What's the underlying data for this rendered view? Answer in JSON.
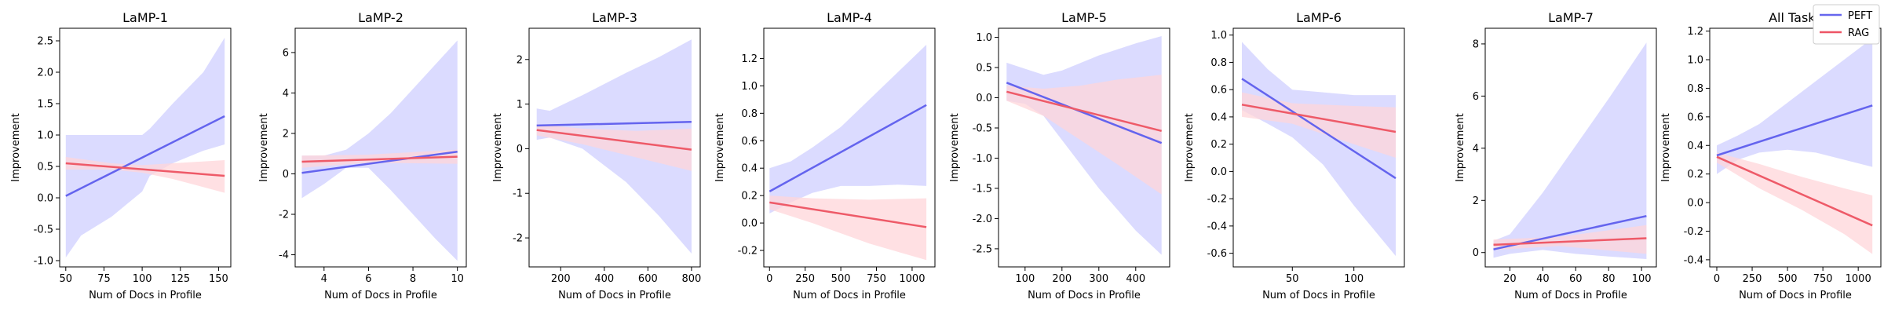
{
  "figure": {
    "legend": {
      "placement": "top-right",
      "entries": [
        {
          "label": "PEFT",
          "color": "#6666ee"
        },
        {
          "label": "RAG",
          "color": "#ee5566"
        }
      ]
    },
    "colors": {
      "peft_line": "#6464ee",
      "peft_band": "#d9d9ff",
      "rag_line": "#ee5a68",
      "rag_band": "#ffd6d9",
      "overlap_band": "#ddb8dc"
    }
  },
  "chart_data": [
    {
      "type": "line",
      "title": "LaMP-1",
      "xlabel": "Num of Docs in Profile",
      "ylabel": "Improvement",
      "xlim": [
        46,
        158
      ],
      "ylim": [
        -1.1,
        2.7
      ],
      "xticks": [
        "50",
        "75",
        "100",
        "125",
        "150"
      ],
      "xtick_values": [
        50,
        75,
        100,
        125,
        150
      ],
      "yticks": [
        "-1.0",
        "-0.5",
        "0.0",
        "0.5",
        "1.0",
        "1.5",
        "2.0",
        "2.5"
      ],
      "ytick_values": [
        -1.0,
        -0.5,
        0.0,
        0.5,
        1.0,
        1.5,
        2.0,
        2.5
      ],
      "series": [
        {
          "name": "PEFT",
          "x": [
            50,
            154
          ],
          "y": [
            0.03,
            1.3
          ],
          "band_x": [
            50,
            60,
            80,
            100,
            105,
            120,
            140,
            154
          ],
          "band_upper": [
            1.0,
            1.0,
            1.0,
            1.0,
            1.1,
            1.5,
            2.0,
            2.55
          ],
          "band_lower": [
            -0.95,
            -0.6,
            -0.3,
            0.1,
            0.35,
            0.55,
            0.75,
            0.85
          ]
        },
        {
          "name": "RAG",
          "x": [
            50,
            154
          ],
          "y": [
            0.55,
            0.35
          ],
          "band_x": [
            50,
            80,
            100,
            120,
            154
          ],
          "band_upper": [
            0.65,
            0.55,
            0.52,
            0.55,
            0.6
          ],
          "band_lower": [
            0.45,
            0.45,
            0.4,
            0.3,
            0.08
          ]
        }
      ]
    },
    {
      "type": "line",
      "title": "LaMP-2",
      "xlabel": "Num of Docs in Profile",
      "ylabel": "Improvement",
      "xlim": [
        2.7,
        10.4
      ],
      "ylim": [
        -4.6,
        7.2
      ],
      "xticks": [
        "4",
        "6",
        "8",
        "10"
      ],
      "xtick_values": [
        4,
        6,
        8,
        10
      ],
      "yticks": [
        "-4",
        "-2",
        "0",
        "2",
        "4",
        "6"
      ],
      "ytick_values": [
        -4,
        -2,
        0,
        2,
        4,
        6
      ],
      "series": [
        {
          "name": "PEFT",
          "x": [
            3,
            10
          ],
          "y": [
            0.05,
            1.1
          ],
          "band_x": [
            3,
            4,
            5,
            6,
            7,
            8,
            9,
            10
          ],
          "band_upper": [
            0.9,
            0.9,
            1.2,
            2.0,
            3.0,
            4.2,
            5.4,
            6.6
          ],
          "band_lower": [
            -1.2,
            -0.5,
            0.3,
            0.3,
            -0.8,
            -2.0,
            -3.2,
            -4.3
          ]
        },
        {
          "name": "RAG",
          "x": [
            3,
            10
          ],
          "y": [
            0.6,
            0.85
          ],
          "band_x": [
            3,
            6,
            10
          ],
          "band_upper": [
            0.9,
            0.95,
            1.2
          ],
          "band_lower": [
            0.3,
            0.55,
            0.5
          ]
        }
      ]
    },
    {
      "type": "line",
      "title": "LaMP-3",
      "xlabel": "Num of Docs in Profile",
      "ylabel": "Improvement",
      "xlim": [
        55,
        840
      ],
      "ylim": [
        -2.65,
        2.7
      ],
      "xticks": [
        "200",
        "400",
        "600",
        "800"
      ],
      "xtick_values": [
        200,
        400,
        600,
        800
      ],
      "yticks": [
        "-2",
        "-1",
        "0",
        "1",
        "2"
      ],
      "ytick_values": [
        -2,
        -1,
        0,
        1,
        2
      ],
      "series": [
        {
          "name": "PEFT",
          "x": [
            90,
            800
          ],
          "y": [
            0.52,
            0.6
          ],
          "band_x": [
            90,
            150,
            300,
            500,
            650,
            800
          ],
          "band_upper": [
            0.9,
            0.85,
            1.2,
            1.7,
            2.05,
            2.45
          ],
          "band_lower": [
            0.2,
            0.25,
            0.0,
            -0.75,
            -1.5,
            -2.35
          ]
        },
        {
          "name": "RAG",
          "x": [
            90,
            800
          ],
          "y": [
            0.42,
            -0.02
          ],
          "band_x": [
            90,
            300,
            550,
            800
          ],
          "band_upper": [
            0.55,
            0.45,
            0.4,
            0.45
          ],
          "band_lower": [
            0.3,
            0.1,
            -0.2,
            -0.5
          ]
        }
      ]
    },
    {
      "type": "line",
      "title": "LaMP-4",
      "xlabel": "Num of Docs in Profile",
      "ylabel": "Improvement",
      "xlim": [
        -40,
        1160
      ],
      "ylim": [
        -0.32,
        1.42
      ],
      "xticks": [
        "0",
        "250",
        "500",
        "750",
        "1000"
      ],
      "xtick_values": [
        0,
        250,
        500,
        750,
        1000
      ],
      "yticks": [
        "-0.2",
        "0.0",
        "0.2",
        "0.4",
        "0.6",
        "0.8",
        "1.0",
        "1.2"
      ],
      "ytick_values": [
        -0.2,
        0.0,
        0.2,
        0.4,
        0.6,
        0.8,
        1.0,
        1.2
      ],
      "series": [
        {
          "name": "PEFT",
          "x": [
            0,
            1100
          ],
          "y": [
            0.23,
            0.86
          ],
          "band_x": [
            0,
            150,
            300,
            500,
            700,
            900,
            1100
          ],
          "band_upper": [
            0.4,
            0.45,
            0.55,
            0.7,
            0.9,
            1.1,
            1.3
          ],
          "band_lower": [
            0.07,
            0.15,
            0.22,
            0.27,
            0.27,
            0.28,
            0.27
          ]
        },
        {
          "name": "RAG",
          "x": [
            0,
            1100
          ],
          "y": [
            0.15,
            -0.03
          ],
          "band_x": [
            0,
            300,
            700,
            1100
          ],
          "band_upper": [
            0.2,
            0.18,
            0.17,
            0.18
          ],
          "band_lower": [
            0.1,
            0.0,
            -0.15,
            -0.27
          ]
        }
      ]
    },
    {
      "type": "line",
      "title": "LaMP-5",
      "xlabel": "Num of Docs in Profile",
      "ylabel": "Improvement",
      "xlim": [
        28,
        492
      ],
      "ylim": [
        -2.8,
        1.15
      ],
      "xticks": [
        "100",
        "200",
        "300",
        "400"
      ],
      "xtick_values": [
        100,
        200,
        300,
        400
      ],
      "yticks": [
        "-2.5",
        "-2.0",
        "-1.5",
        "-1.0",
        "-0.5",
        "0.0",
        "0.5",
        "1.0"
      ],
      "ytick_values": [
        -2.5,
        -2.0,
        -1.5,
        -1.0,
        -0.5,
        0.0,
        0.5,
        1.0
      ],
      "series": [
        {
          "name": "PEFT",
          "x": [
            50,
            470
          ],
          "y": [
            0.25,
            -0.75
          ],
          "band_x": [
            50,
            100,
            150,
            200,
            300,
            400,
            470
          ],
          "band_upper": [
            0.58,
            0.48,
            0.38,
            0.45,
            0.7,
            0.9,
            1.02
          ],
          "band_lower": [
            -0.05,
            -0.1,
            -0.3,
            -0.7,
            -1.5,
            -2.2,
            -2.6
          ]
        },
        {
          "name": "RAG",
          "x": [
            50,
            470
          ],
          "y": [
            0.1,
            -0.55
          ],
          "band_x": [
            50,
            150,
            250,
            350,
            470
          ],
          "band_upper": [
            0.2,
            0.15,
            0.2,
            0.3,
            0.38
          ],
          "band_lower": [
            -0.05,
            -0.3,
            -0.7,
            -1.1,
            -1.6
          ]
        }
      ]
    },
    {
      "type": "line",
      "title": "LaMP-6",
      "xlabel": "Num of Docs in Profile",
      "ylabel": "Improvement",
      "xlim": [
        2,
        141
      ],
      "ylim": [
        -0.7,
        1.05
      ],
      "xticks": [
        "50",
        "100"
      ],
      "xtick_values": [
        50,
        100
      ],
      "yticks": [
        "-0.6",
        "-0.4",
        "-0.2",
        "0.0",
        "0.2",
        "0.4",
        "0.6",
        "0.8",
        "1.0"
      ],
      "ytick_values": [
        -0.6,
        -0.4,
        -0.2,
        0.0,
        0.2,
        0.4,
        0.6,
        0.8,
        1.0
      ],
      "series": [
        {
          "name": "PEFT",
          "x": [
            9,
            134
          ],
          "y": [
            0.68,
            -0.05
          ],
          "band_x": [
            9,
            30,
            50,
            75,
            100,
            134
          ],
          "band_upper": [
            0.95,
            0.75,
            0.6,
            0.58,
            0.56,
            0.56
          ],
          "band_lower": [
            0.45,
            0.35,
            0.25,
            0.05,
            -0.25,
            -0.62
          ]
        },
        {
          "name": "RAG",
          "x": [
            9,
            134
          ],
          "y": [
            0.49,
            0.29
          ],
          "band_x": [
            9,
            50,
            100,
            134
          ],
          "band_upper": [
            0.58,
            0.5,
            0.48,
            0.47
          ],
          "band_lower": [
            0.4,
            0.35,
            0.2,
            0.1
          ]
        }
      ]
    },
    {
      "type": "line",
      "title": "LaMP-7",
      "xlabel": "Num of Docs in Profile",
      "ylabel": "Improvement",
      "xlim": [
        5,
        109
      ],
      "ylim": [
        -0.55,
        8.6
      ],
      "xticks": [
        "20",
        "40",
        "60",
        "80",
        "100"
      ],
      "xtick_values": [
        20,
        40,
        60,
        80,
        100
      ],
      "yticks": [
        "0",
        "2",
        "4",
        "6",
        "8"
      ],
      "ytick_values": [
        0,
        2,
        4,
        6,
        8
      ],
      "series": [
        {
          "name": "PEFT",
          "x": [
            10,
            103
          ],
          "y": [
            0.12,
            1.4
          ],
          "band_x": [
            10,
            20,
            40,
            60,
            80,
            103
          ],
          "band_upper": [
            0.45,
            0.7,
            2.3,
            4.1,
            5.9,
            8.05
          ],
          "band_lower": [
            -0.2,
            -0.05,
            0.1,
            -0.05,
            -0.15,
            -0.25
          ]
        },
        {
          "name": "RAG",
          "x": [
            10,
            103
          ],
          "y": [
            0.3,
            0.55
          ],
          "band_x": [
            10,
            50,
            103
          ],
          "band_upper": [
            0.5,
            0.6,
            1.05
          ],
          "band_lower": [
            0.1,
            0.25,
            -0.05
          ]
        }
      ]
    },
    {
      "type": "line",
      "title": "All Tasks",
      "xlabel": "Num of Docs in Profile",
      "ylabel": "Improvement",
      "xlim": [
        -50,
        1160
      ],
      "ylim": [
        -0.45,
        1.22
      ],
      "xticks": [
        "0",
        "250",
        "500",
        "750",
        "1000"
      ],
      "xtick_values": [
        0,
        250,
        500,
        750,
        1000
      ],
      "yticks": [
        "-0.4",
        "-0.2",
        "0.0",
        "0.2",
        "0.4",
        "0.6",
        "0.8",
        "1.0",
        "1.2"
      ],
      "ytick_values": [
        -0.4,
        -0.2,
        0.0,
        0.2,
        0.4,
        0.6,
        0.8,
        1.0,
        1.2
      ],
      "series": [
        {
          "name": "PEFT",
          "x": [
            0,
            1100
          ],
          "y": [
            0.33,
            0.68
          ],
          "band_x": [
            0,
            150,
            300,
            500,
            700,
            900,
            1100
          ],
          "band_upper": [
            0.4,
            0.47,
            0.55,
            0.7,
            0.85,
            1.0,
            1.15
          ],
          "band_lower": [
            0.2,
            0.3,
            0.35,
            0.37,
            0.35,
            0.3,
            0.25
          ]
        },
        {
          "name": "RAG",
          "x": [
            0,
            1100
          ],
          "y": [
            0.32,
            -0.16
          ],
          "band_x": [
            0,
            300,
            600,
            900,
            1100
          ],
          "band_upper": [
            0.35,
            0.27,
            0.18,
            0.1,
            0.05
          ],
          "band_lower": [
            0.28,
            0.1,
            -0.05,
            -0.22,
            -0.36
          ]
        }
      ]
    }
  ]
}
